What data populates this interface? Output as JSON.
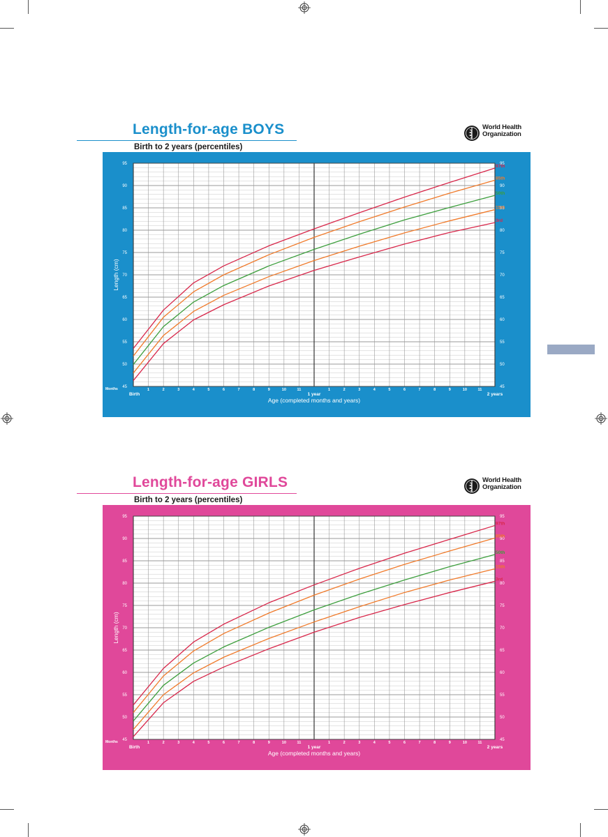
{
  "charts": [
    {
      "id": "boys",
      "title": "Length-for-age BOYS",
      "subtitle": "Birth to 2 years (percentiles)",
      "organization": "World Health Organization",
      "organization_lines": [
        "World Health",
        "Organization"
      ],
      "colors": {
        "title": "#1a8fcb",
        "panel": "#1a8fcb",
        "rule": "#1a8fcb"
      }
    },
    {
      "id": "girls",
      "title": "Length-for-age GIRLS",
      "subtitle": "Birth to 2 years (percentiles)",
      "organization": "World Health Organization",
      "organization_lines": [
        "World Health",
        "Organization"
      ],
      "colors": {
        "title": "#e0489a",
        "panel": "#e0489a",
        "rule": "#e0489a"
      }
    }
  ],
  "chart_data": [
    {
      "type": "line",
      "title": "Length-for-age BOYS",
      "subtitle": "Birth to 2 years (percentiles)",
      "xlabel": "Age (completed months and years)",
      "ylabel": "Length (cm)",
      "xlim": [
        0,
        24
      ],
      "ylim": [
        45,
        95
      ],
      "x_units_label": "Months",
      "x_tick_labels": [
        "Birth",
        "1",
        "2",
        "3",
        "4",
        "5",
        "6",
        "7",
        "8",
        "9",
        "10",
        "11",
        "1 year",
        "1",
        "2",
        "3",
        "4",
        "5",
        "6",
        "7",
        "8",
        "9",
        "10",
        "11",
        "2 years"
      ],
      "y_tick_labels": [
        "45",
        "50",
        "55",
        "60",
        "65",
        "70",
        "75",
        "80",
        "85",
        "90",
        "95"
      ],
      "grid": true,
      "x": [
        0,
        2,
        4,
        6,
        9,
        12,
        15,
        18,
        21,
        24
      ],
      "series": [
        {
          "name": "97th",
          "color": "#d8274a",
          "values": [
            53.5,
            62.1,
            68.2,
            72.0,
            76.5,
            80.3,
            83.9,
            87.4,
            90.7,
            93.9
          ]
        },
        {
          "name": "85th",
          "color": "#f07a2a",
          "values": [
            51.8,
            60.5,
            66.2,
            70.0,
            74.5,
            78.4,
            81.9,
            85.2,
            88.3,
            91.2
          ]
        },
        {
          "name": "50th",
          "color": "#3c9e3c",
          "values": [
            49.9,
            58.4,
            63.9,
            67.6,
            72.0,
            75.7,
            79.1,
            82.3,
            85.1,
            87.8
          ]
        },
        {
          "name": "15th",
          "color": "#f07a2a",
          "values": [
            48.0,
            56.4,
            61.8,
            65.4,
            69.6,
            73.2,
            76.4,
            79.4,
            82.1,
            84.6
          ]
        },
        {
          "name": "3rd",
          "color": "#d8274a",
          "values": [
            46.3,
            54.6,
            59.9,
            63.3,
            67.5,
            71.0,
            74.0,
            76.9,
            79.5,
            81.7
          ]
        }
      ]
    },
    {
      "type": "line",
      "title": "Length-for-age GIRLS",
      "subtitle": "Birth to 2 years (percentiles)",
      "xlabel": "Age (completed months and years)",
      "ylabel": "Length (cm)",
      "xlim": [
        0,
        24
      ],
      "ylim": [
        45,
        95
      ],
      "x_units_label": "Months",
      "x_tick_labels": [
        "Birth",
        "1",
        "2",
        "3",
        "4",
        "5",
        "6",
        "7",
        "8",
        "9",
        "10",
        "11",
        "1 year",
        "1",
        "2",
        "3",
        "4",
        "5",
        "6",
        "7",
        "8",
        "9",
        "10",
        "11",
        "2 years"
      ],
      "y_tick_labels": [
        "45",
        "50",
        "55",
        "60",
        "65",
        "70",
        "75",
        "80",
        "85",
        "90",
        "95"
      ],
      "grid": true,
      "x": [
        0,
        2,
        4,
        6,
        9,
        12,
        15,
        18,
        21,
        24
      ],
      "series": [
        {
          "name": "97th",
          "color": "#d8274a",
          "values": [
            52.7,
            60.9,
            66.8,
            70.8,
            75.6,
            79.6,
            83.3,
            86.7,
            89.8,
            92.9
          ]
        },
        {
          "name": "85th",
          "color": "#f07a2a",
          "values": [
            51.0,
            59.2,
            64.8,
            68.7,
            73.3,
            77.3,
            80.9,
            84.2,
            87.2,
            90.1
          ]
        },
        {
          "name": "50th",
          "color": "#3c9e3c",
          "values": [
            49.1,
            57.1,
            62.1,
            65.7,
            70.1,
            74.0,
            77.5,
            80.7,
            83.7,
            86.4
          ]
        },
        {
          "name": "15th",
          "color": "#f07a2a",
          "values": [
            47.2,
            55.0,
            59.9,
            63.4,
            67.6,
            71.3,
            74.7,
            77.9,
            80.7,
            83.2
          ]
        },
        {
          "name": "3rd",
          "color": "#d8274a",
          "values": [
            45.6,
            53.2,
            58.0,
            61.2,
            65.3,
            69.0,
            72.3,
            75.2,
            77.9,
            80.4
          ]
        }
      ]
    }
  ]
}
